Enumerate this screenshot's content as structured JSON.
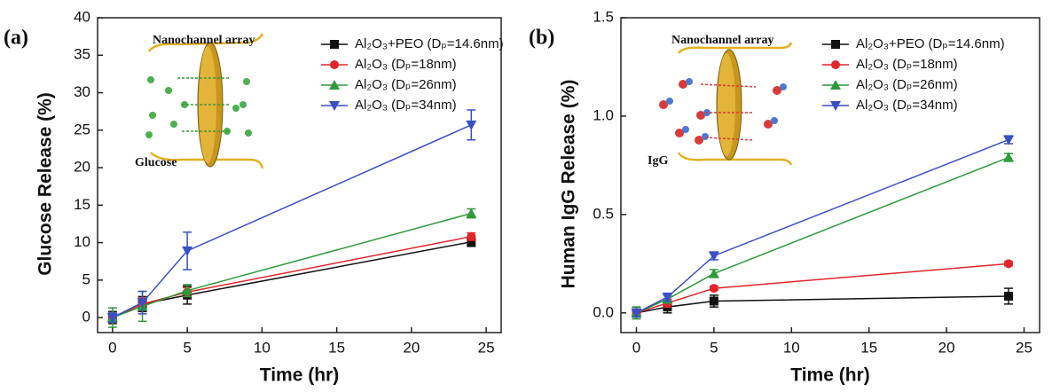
{
  "chart_data": [
    {
      "type": "line",
      "xlabel": "Time (hr)",
      "ylabel": "Glucose Release (%)",
      "annotations": [
        "(a)",
        "Nanochannel array",
        "Glucose"
      ],
      "x": [
        0,
        2,
        5,
        24
      ],
      "xlim": [
        -1,
        26
      ],
      "xticks": [
        0,
        5,
        10,
        15,
        20,
        25
      ],
      "ylim": [
        -2,
        40
      ],
      "yticks": [
        0,
        5,
        10,
        15,
        20,
        25,
        30,
        35,
        40
      ],
      "legend": "upper right",
      "series": [
        {
          "name": "Al₂O₃+PEO (Dₚ=14.6nm)",
          "color": "#111111",
          "marker": "square",
          "values": [
            0,
            1.8,
            3,
            10.1
          ],
          "errors": [
            0.8,
            1,
            1.2,
            0.6
          ]
        },
        {
          "name": "Al₂O₃ (Dₚ=18nm)",
          "color": "#e0262b",
          "marker": "circle",
          "values": [
            0,
            1.8,
            3.4,
            10.8
          ],
          "errors": [
            0.6,
            0.8,
            0.6,
            0.5
          ]
        },
        {
          "name": "Al₂O₃ (Dₚ=26nm)",
          "color": "#2f9a3a",
          "marker": "triangle-up",
          "values": [
            0,
            1.5,
            3.6,
            13.9
          ],
          "errors": [
            1.3,
            2,
            0.8,
            0.6
          ]
        },
        {
          "name": "Al₂O₃ (Dₚ=34nm)",
          "color": "#3a4fc4",
          "marker": "triangle-down",
          "values": [
            0,
            2,
            8.9,
            25.7
          ],
          "errors": [
            0.6,
            1.5,
            2.5,
            2
          ]
        }
      ]
    },
    {
      "type": "line",
      "xlabel": "Time (hr)",
      "ylabel": "Human IgG Release (%)",
      "annotations": [
        "(b)",
        "Nanochannel array",
        "IgG"
      ],
      "x": [
        0,
        2,
        5,
        24
      ],
      "xlim": [
        -1,
        26
      ],
      "xticks": [
        0,
        5,
        10,
        15,
        20,
        25
      ],
      "ylim": [
        -0.1,
        1.5
      ],
      "yticks": [
        {
          "value": 0,
          "label": "0.0"
        },
        0.5,
        {
          "value": 1,
          "label": "1.0"
        },
        1.5
      ],
      "legend": "upper right",
      "series": [
        {
          "name": "Al₂O₃+PEO (Dₚ=14.6nm)",
          "color": "#111111",
          "marker": "square",
          "values": [
            0,
            0.03,
            0.06,
            0.085
          ],
          "errors": [
            0.03,
            0.03,
            0.03,
            0.04
          ]
        },
        {
          "name": "Al₂O₃ (Dₚ=18nm)",
          "color": "#e0262b",
          "marker": "circle",
          "values": [
            0,
            0.05,
            0.125,
            0.25
          ],
          "errors": [
            0.02,
            0.02,
            0.01,
            0.01
          ]
        },
        {
          "name": "Al₂O₃ (Dₚ=26nm)",
          "color": "#2f9a3a",
          "marker": "triangle-up",
          "values": [
            0,
            0.07,
            0.2,
            0.79
          ],
          "errors": [
            0.03,
            0.02,
            0.02,
            0.02
          ]
        },
        {
          "name": "Al₂O₃ (Dₚ=34nm)",
          "color": "#3a4fc4",
          "marker": "triangle-down",
          "values": [
            0,
            0.08,
            0.29,
            0.88
          ],
          "errors": [
            0.02,
            0.02,
            0.02,
            0.02
          ]
        }
      ]
    }
  ]
}
